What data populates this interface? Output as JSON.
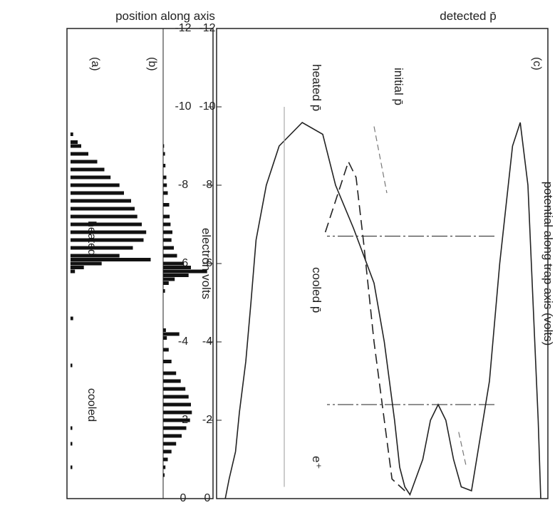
{
  "chart_data": [
    {
      "panel": "(c)",
      "type": "line",
      "xlabel": "potential along trap axis (volts)",
      "ylabel": "position along axis",
      "x_ticks": [
        "0",
        "-2",
        "-4",
        "-6",
        "-8",
        "-10",
        "-12"
      ],
      "xlim": [
        0,
        -12
      ],
      "annotations": [
        "initial p̄",
        "heated p̄",
        "cooled p̄",
        "e⁺"
      ],
      "series": [
        {
          "style": "solid",
          "points": [
            [
              0.0,
              0.02
            ],
            [
              -0.5,
              0.035
            ],
            [
              -1.2,
              0.06
            ],
            [
              -2.2,
              0.075
            ],
            [
              -3.5,
              0.1
            ],
            [
              -5.0,
              0.12
            ],
            [
              -6.6,
              0.14
            ],
            [
              -8.0,
              0.18
            ],
            [
              -9.0,
              0.23
            ],
            [
              -9.6,
              0.32
            ],
            [
              -9.3,
              0.4
            ],
            [
              -8.0,
              0.45
            ],
            [
              -6.9,
              0.52
            ],
            [
              -5.5,
              0.6
            ],
            [
              -4.0,
              0.64
            ],
            [
              -2.0,
              0.68
            ],
            [
              -0.8,
              0.7
            ],
            [
              -0.3,
              0.72
            ],
            [
              -0.1,
              0.74
            ],
            [
              -1.0,
              0.79
            ],
            [
              -2.0,
              0.82
            ],
            [
              -2.4,
              0.85
            ],
            [
              -2.0,
              0.88
            ],
            [
              -1.0,
              0.91
            ],
            [
              -0.3,
              0.94
            ],
            [
              -0.2,
              0.98
            ],
            [
              -3.0,
              1.05
            ],
            [
              -6.0,
              1.09
            ],
            [
              -9.0,
              1.14
            ],
            [
              -9.6,
              1.17
            ],
            [
              -8.0,
              1.2
            ],
            [
              -5.0,
              1.22
            ],
            [
              -2.0,
              1.24
            ],
            [
              0.0,
              1.25
            ]
          ]
        },
        {
          "style": "dashed",
          "points": [
            [
              -6.8,
              0.41
            ],
            [
              -7.6,
              0.45
            ],
            [
              -8.6,
              0.5
            ],
            [
              -8.2,
              0.53
            ],
            [
              -6.5,
              0.56
            ],
            [
              -4.0,
              0.6
            ],
            [
              -2.0,
              0.64
            ],
            [
              -0.5,
              0.67
            ],
            [
              -0.2,
              0.72
            ]
          ]
        },
        {
          "style": "gray-arrow",
          "points": [
            [
              -10.0,
              0.25
            ],
            [
              -0.3,
              0.25
            ]
          ]
        }
      ],
      "levels": [
        {
          "label": "heated p̄",
          "value": -6.7
        },
        {
          "label": "cooled p̄",
          "value": -2.4
        }
      ]
    },
    {
      "panel": "(b)",
      "type": "histogram",
      "xlabel": "electron volts",
      "x_ticks": [
        "0",
        "-2",
        "-4",
        "-6",
        "-8",
        "-10",
        "-12"
      ],
      "xlim": [
        0,
        -12
      ],
      "bins": [
        {
          "energy": -9.0,
          "count": 0.02
        },
        {
          "energy": -8.8,
          "count": 0.04
        },
        {
          "energy": -8.5,
          "count": 0.05
        },
        {
          "energy": -8.2,
          "count": 0.07
        },
        {
          "energy": -8.0,
          "count": 0.08
        },
        {
          "energy": -7.8,
          "count": 0.1
        },
        {
          "energy": -7.5,
          "count": 0.13
        },
        {
          "energy": -7.2,
          "count": 0.14
        },
        {
          "energy": -7.0,
          "count": 0.16
        },
        {
          "energy": -6.8,
          "count": 0.2
        },
        {
          "energy": -6.6,
          "count": 0.18
        },
        {
          "energy": -6.4,
          "count": 0.23
        },
        {
          "energy": -6.2,
          "count": 0.3
        },
        {
          "energy": -6.0,
          "count": 0.45
        },
        {
          "energy": -5.9,
          "count": 0.6
        },
        {
          "energy": -5.8,
          "count": 0.95
        },
        {
          "energy": -5.7,
          "count": 0.55
        },
        {
          "energy": -5.6,
          "count": 0.25
        },
        {
          "energy": -5.5,
          "count": 0.12
        },
        {
          "energy": -5.3,
          "count": 0.04
        },
        {
          "energy": -4.3,
          "count": 0.06
        },
        {
          "energy": -4.2,
          "count": 0.35
        },
        {
          "energy": -4.1,
          "count": 0.08
        },
        {
          "energy": -3.8,
          "count": 0.12
        },
        {
          "energy": -3.5,
          "count": 0.18
        },
        {
          "energy": -3.2,
          "count": 0.28
        },
        {
          "energy": -3.0,
          "count": 0.38
        },
        {
          "energy": -2.8,
          "count": 0.48
        },
        {
          "energy": -2.6,
          "count": 0.55
        },
        {
          "energy": -2.4,
          "count": 0.6
        },
        {
          "energy": -2.2,
          "count": 0.62
        },
        {
          "energy": -2.0,
          "count": 0.58
        },
        {
          "energy": -1.8,
          "count": 0.5
        },
        {
          "energy": -1.6,
          "count": 0.4
        },
        {
          "energy": -1.4,
          "count": 0.28
        },
        {
          "energy": -1.2,
          "count": 0.18
        },
        {
          "energy": -1.0,
          "count": 0.1
        },
        {
          "energy": -0.8,
          "count": 0.05
        },
        {
          "energy": -0.6,
          "count": 0.03
        }
      ]
    },
    {
      "panel": "(a)",
      "type": "histogram",
      "title": "detected p̄",
      "annotations": [
        "heated",
        "cooled"
      ],
      "x_ticks": [
        "0",
        "-2",
        "-4",
        "-6",
        "-8",
        "-10",
        "-12"
      ],
      "xlim": [
        0,
        -12
      ],
      "bins": [
        {
          "energy": -9.3,
          "count": 0.03
        },
        {
          "energy": -9.1,
          "count": 0.08
        },
        {
          "energy": -9.0,
          "count": 0.12
        },
        {
          "energy": -8.8,
          "count": 0.2
        },
        {
          "energy": -8.6,
          "count": 0.3
        },
        {
          "energy": -8.4,
          "count": 0.38
        },
        {
          "energy": -8.2,
          "count": 0.45
        },
        {
          "energy": -8.0,
          "count": 0.55
        },
        {
          "energy": -7.8,
          "count": 0.6
        },
        {
          "energy": -7.6,
          "count": 0.68
        },
        {
          "energy": -7.4,
          "count": 0.72
        },
        {
          "energy": -7.2,
          "count": 0.75
        },
        {
          "energy": -7.0,
          "count": 0.8
        },
        {
          "energy": -6.8,
          "count": 0.85
        },
        {
          "energy": -6.6,
          "count": 0.82
        },
        {
          "energy": -6.4,
          "count": 0.7
        },
        {
          "energy": -6.2,
          "count": 0.55
        },
        {
          "energy": -6.1,
          "count": 0.9
        },
        {
          "energy": -6.0,
          "count": 0.35
        },
        {
          "energy": -5.9,
          "count": 0.15
        },
        {
          "energy": -5.8,
          "count": 0.05
        },
        {
          "energy": -4.6,
          "count": 0.03
        },
        {
          "energy": -3.4,
          "count": 0.02
        },
        {
          "energy": -1.8,
          "count": 0.02
        },
        {
          "energy": -1.4,
          "count": 0.02
        },
        {
          "energy": -0.8,
          "count": 0.02
        }
      ]
    }
  ]
}
